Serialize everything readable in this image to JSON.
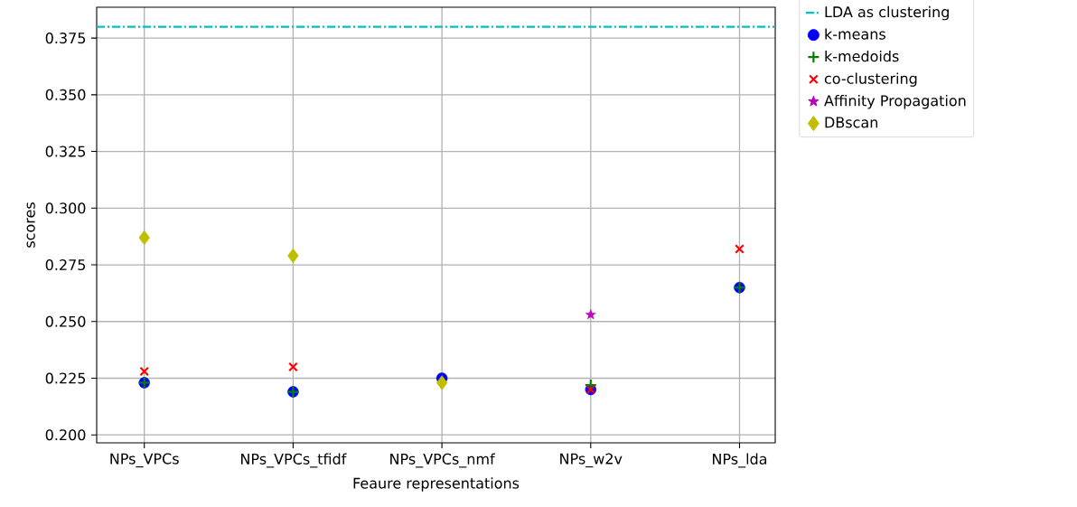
{
  "chart_data": {
    "type": "scatter",
    "xlabel": "Feaure representations",
    "ylabel": "scores",
    "categories": [
      "NPs_VPCs",
      "NPs_VPCs_tfidf",
      "NPs_VPCs_nmf",
      "NPs_w2v",
      "NPs_lda"
    ],
    "series": [
      {
        "name": "k-means",
        "color": "#0000ff",
        "marker": "circle",
        "values": [
          0.223,
          0.219,
          0.225,
          0.22,
          0.265
        ]
      },
      {
        "name": "k-medoids",
        "color": "#008000",
        "marker": "cross",
        "values": [
          0.223,
          0.219,
          null,
          0.222,
          0.265
        ]
      },
      {
        "name": "co-clustering",
        "color": "#ff0000",
        "marker": "x",
        "values": [
          0.228,
          0.23,
          null,
          0.22,
          0.282
        ]
      },
      {
        "name": "Affinity Propagation",
        "color": "#bf00bf",
        "marker": "star",
        "values": [
          null,
          null,
          null,
          0.253,
          null
        ]
      },
      {
        "name": "DBscan",
        "color": "#bfbf00",
        "marker": "diamond",
        "values": [
          0.287,
          0.279,
          0.223,
          null,
          null
        ]
      }
    ],
    "ref_lines": [
      {
        "axis": "y",
        "value": 0.38,
        "label": "LDA as clustering",
        "color": "#00bfbf",
        "line_style": "dashdot"
      }
    ],
    "ylim": [
      0.1965,
      0.3886
    ],
    "yticks": [
      {
        "value": 0.2,
        "label": "0.200"
      },
      {
        "value": 0.225,
        "label": "0.225"
      },
      {
        "value": 0.25,
        "label": "0.250"
      },
      {
        "value": 0.275,
        "label": "0.275"
      },
      {
        "value": 0.3,
        "label": "0.300"
      },
      {
        "value": 0.325,
        "label": "0.325"
      },
      {
        "value": 0.35,
        "label": "0.350"
      },
      {
        "value": 0.375,
        "label": "0.375"
      }
    ],
    "grid": true,
    "legend": "top right"
  }
}
